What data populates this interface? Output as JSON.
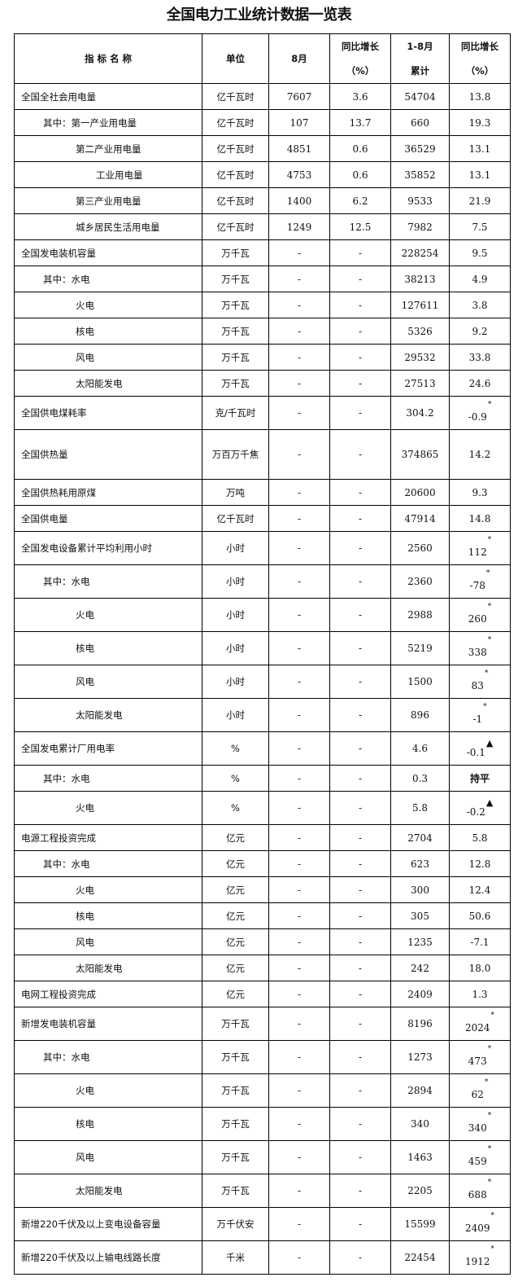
{
  "title": "全国电力工业统计数据一览表",
  "headers": {
    "name": "指 标 名 称",
    "unit": "单位",
    "month": "8月",
    "month_yoy_1": "同比增长",
    "month_yoy_2": "（%）",
    "cum_1": "1-8月",
    "cum_2": "累计",
    "cum_yoy_1": "同比增长",
    "cum_yoy_2": "（%）"
  },
  "rows": [
    {
      "name": "全国全社会用电量",
      "level": 0,
      "unit": "亿千瓦时",
      "month": "7607",
      "month_yoy": "3.6",
      "cum": "54704",
      "cum_yoy": "13.8",
      "h": 32
    },
    {
      "name": "其中：第一产业用电量",
      "level": 1,
      "unit": "亿千瓦时",
      "month": "107",
      "month_yoy": "13.7",
      "cum": "660",
      "cum_yoy": "19.3",
      "h": 32
    },
    {
      "name": "第二产业用电量",
      "level": 2,
      "unit": "亿千瓦时",
      "month": "4851",
      "month_yoy": "0.6",
      "cum": "36529",
      "cum_yoy": "13.1",
      "h": 32
    },
    {
      "name": "工业用电量",
      "level": 3,
      "unit": "亿千瓦时",
      "month": "4753",
      "month_yoy": "0.6",
      "cum": "35852",
      "cum_yoy": "13.1",
      "h": 32
    },
    {
      "name": "第三产业用电量",
      "level": 2,
      "unit": "亿千瓦时",
      "month": "1400",
      "month_yoy": "6.2",
      "cum": "9533",
      "cum_yoy": "21.9",
      "h": 32
    },
    {
      "name": "城乡居民生活用电量",
      "level": 2,
      "unit": "亿千瓦时",
      "month": "1249",
      "month_yoy": "12.5",
      "cum": "7982",
      "cum_yoy": "7.5",
      "h": 32
    },
    {
      "name": "全国发电装机容量",
      "level": 0,
      "unit": "万千瓦",
      "month": "-",
      "month_yoy": "-",
      "cum": "228254",
      "cum_yoy": "9.5",
      "h": 32
    },
    {
      "name": "其中：水电",
      "level": 1,
      "unit": "万千瓦",
      "month": "-",
      "month_yoy": "-",
      "cum": "38213",
      "cum_yoy": "4.9",
      "h": 32
    },
    {
      "name": "火电",
      "level": 2,
      "unit": "万千瓦",
      "month": "-",
      "month_yoy": "-",
      "cum": "127611",
      "cum_yoy": "3.8",
      "h": 32
    },
    {
      "name": "核电",
      "level": 2,
      "unit": "万千瓦",
      "month": "-",
      "month_yoy": "-",
      "cum": "5326",
      "cum_yoy": "9.2",
      "h": 32
    },
    {
      "name": "风电",
      "level": 2,
      "unit": "万千瓦",
      "month": "-",
      "month_yoy": "-",
      "cum": "29532",
      "cum_yoy": "33.8",
      "h": 32
    },
    {
      "name": "太阳能发电",
      "level": 2,
      "unit": "万千瓦",
      "month": "-",
      "month_yoy": "-",
      "cum": "27513",
      "cum_yoy": "24.6",
      "h": 32
    },
    {
      "name": "全国供电煤耗率",
      "level": 0,
      "unit": "克/千瓦时",
      "month": "-",
      "month_yoy": "-",
      "cum": "304.2",
      "cum_yoy": "-0.9",
      "mark": "*",
      "h": 41
    },
    {
      "name": "全国供热量",
      "level": 0,
      "unit": "万百万千焦",
      "month": "-",
      "month_yoy": "-",
      "cum": "374865",
      "cum_yoy": "14.2",
      "h": 61
    },
    {
      "name": "全国供热耗用原煤",
      "level": 0,
      "unit": "万吨",
      "month": "-",
      "month_yoy": "-",
      "cum": "20600",
      "cum_yoy": "9.3",
      "h": 32
    },
    {
      "name": "全国供电量",
      "level": 0,
      "unit": "亿千瓦时",
      "month": "-",
      "month_yoy": "-",
      "cum": "47914",
      "cum_yoy": "14.8",
      "h": 32
    },
    {
      "name": "全国发电设备累计平均利用小时",
      "level": 0,
      "unit": "小时",
      "month": "-",
      "month_yoy": "-",
      "cum": "2560",
      "cum_yoy": "112",
      "mark": "*",
      "h": 41
    },
    {
      "name": "其中：水电",
      "level": 1,
      "unit": "小时",
      "month": "-",
      "month_yoy": "-",
      "cum": "2360",
      "cum_yoy": "-78",
      "mark": "*",
      "h": 41
    },
    {
      "name": "火电",
      "level": 2,
      "unit": "小时",
      "month": "-",
      "month_yoy": "-",
      "cum": "2988",
      "cum_yoy": "260",
      "mark": "*",
      "h": 41
    },
    {
      "name": "核电",
      "level": 2,
      "unit": "小时",
      "month": "-",
      "month_yoy": "-",
      "cum": "5219",
      "cum_yoy": "338",
      "mark": "*",
      "h": 41
    },
    {
      "name": "风电",
      "level": 2,
      "unit": "小时",
      "month": "-",
      "month_yoy": "-",
      "cum": "1500",
      "cum_yoy": "83",
      "mark": "*",
      "h": 41
    },
    {
      "name": "太阳能发电",
      "level": 2,
      "unit": "小时",
      "month": "-",
      "month_yoy": "-",
      "cum": "896",
      "cum_yoy": "-1",
      "mark": "*",
      "h": 41
    },
    {
      "name": "全国发电累计厂用电率",
      "level": 0,
      "unit": "%",
      "month": "-",
      "month_yoy": "-",
      "cum": "4.6",
      "cum_yoy": "-0.1",
      "mark": "▲",
      "h": 41
    },
    {
      "name": "其中：水电",
      "level": 1,
      "unit": "%",
      "month": "-",
      "month_yoy": "-",
      "cum": "0.3",
      "cum_yoy": "持平",
      "h": 32
    },
    {
      "name": "火电",
      "level": 2,
      "unit": "%",
      "month": "-",
      "month_yoy": "-",
      "cum": "5.8",
      "cum_yoy": "-0.2",
      "mark": "▲",
      "h": 41
    },
    {
      "name": "电源工程投资完成",
      "level": 0,
      "unit": "亿元",
      "month": "-",
      "month_yoy": "-",
      "cum": "2704",
      "cum_yoy": "5.8",
      "h": 32
    },
    {
      "name": "其中：水电",
      "level": 1,
      "unit": "亿元",
      "month": "-",
      "month_yoy": "-",
      "cum": "623",
      "cum_yoy": "12.8",
      "h": 32
    },
    {
      "name": "火电",
      "level": 2,
      "unit": "亿元",
      "month": "-",
      "month_yoy": "-",
      "cum": "300",
      "cum_yoy": "12.4",
      "h": 32
    },
    {
      "name": "核电",
      "level": 2,
      "unit": "亿元",
      "month": "-",
      "month_yoy": "-",
      "cum": "305",
      "cum_yoy": "50.6",
      "h": 32
    },
    {
      "name": "风电",
      "level": 2,
      "unit": "亿元",
      "month": "-",
      "month_yoy": "-",
      "cum": "1235",
      "cum_yoy": "-7.1",
      "h": 32
    },
    {
      "name": "太阳能发电",
      "level": 2,
      "unit": "亿元",
      "month": "-",
      "month_yoy": "-",
      "cum": "242",
      "cum_yoy": "18.0",
      "h": 32
    },
    {
      "name": "电网工程投资完成",
      "level": 0,
      "unit": "亿元",
      "month": "-",
      "month_yoy": "-",
      "cum": "2409",
      "cum_yoy": "1.3",
      "h": 32
    },
    {
      "name": "新增发电装机容量",
      "level": 0,
      "unit": "万千瓦",
      "month": "-",
      "month_yoy": "-",
      "cum": "8196",
      "cum_yoy": "2024",
      "mark": "*",
      "h": 41
    },
    {
      "name": "其中：水电",
      "level": 1,
      "unit": "万千瓦",
      "month": "-",
      "month_yoy": "-",
      "cum": "1273",
      "cum_yoy": "473",
      "mark": "*",
      "h": 41
    },
    {
      "name": "火电",
      "level": 2,
      "unit": "万千瓦",
      "month": "-",
      "month_yoy": "-",
      "cum": "2894",
      "cum_yoy": "62",
      "mark": "*",
      "h": 41
    },
    {
      "name": "核电",
      "level": 2,
      "unit": "万千瓦",
      "month": "-",
      "month_yoy": "-",
      "cum": "340",
      "cum_yoy": "340",
      "mark": "*",
      "h": 41
    },
    {
      "name": "风电",
      "level": 2,
      "unit": "万千瓦",
      "month": "-",
      "month_yoy": "-",
      "cum": "1463",
      "cum_yoy": "459",
      "mark": "*",
      "h": 41
    },
    {
      "name": "太阳能发电",
      "level": 2,
      "unit": "万千瓦",
      "month": "-",
      "month_yoy": "-",
      "cum": "2205",
      "cum_yoy": "688",
      "mark": "*",
      "h": 41
    },
    {
      "name": "新增220千伏及以上变电设备容量",
      "level": 0,
      "unit": "万千伏安",
      "month": "-",
      "month_yoy": "-",
      "cum": "15599",
      "cum_yoy": "2409",
      "mark": "*",
      "h": 41
    },
    {
      "name": "新增220千伏及以上输电线路长度",
      "level": 0,
      "unit": "千米",
      "month": "-",
      "month_yoy": "-",
      "cum": "22454",
      "cum_yoy": "1912",
      "mark": "*",
      "h": 41
    }
  ]
}
